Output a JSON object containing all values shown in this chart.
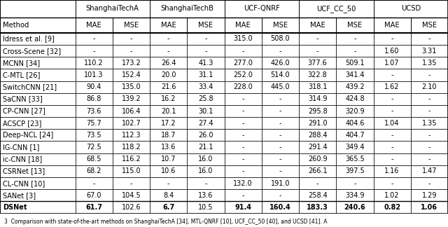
{
  "col_groups": [
    "ShanghaiTechA",
    "ShanghaiTechB",
    "UCF-QNRF",
    "UCF_CC_50",
    "UCSD"
  ],
  "methods": [
    "Idress et al. [9]",
    "Cross-Scene [32]",
    "MCNN [34]",
    "C-MTL [26]",
    "SwitchCNN [21]",
    "SaCNN [33]",
    "CP-CNN [27]",
    "ACSCP [23]",
    "Deep-NCL [24]",
    "IG-CNN [1]",
    "ic-CNN [18]",
    "CSRNet [13]",
    "CL-CNN [10]",
    "SANet [3]",
    "DSNet"
  ],
  "data": [
    [
      "-",
      "-",
      "-",
      "-",
      "315.0",
      "508.0",
      "-",
      "-",
      "-",
      "-"
    ],
    [
      "-",
      "-",
      "-",
      "-",
      "-",
      "-",
      "-",
      "-",
      "1.60",
      "3.31"
    ],
    [
      "110.2",
      "173.2",
      "26.4",
      "41.3",
      "277.0",
      "426.0",
      "377.6",
      "509.1",
      "1.07",
      "1.35"
    ],
    [
      "101.3",
      "152.4",
      "20.0",
      "31.1",
      "252.0",
      "514.0",
      "322.8",
      "341.4",
      "-",
      "-"
    ],
    [
      "90.4",
      "135.0",
      "21.6",
      "33.4",
      "228.0",
      "445.0",
      "318.1",
      "439.2",
      "1.62",
      "2.10"
    ],
    [
      "86.8",
      "139.2",
      "16.2",
      "25.8",
      "-",
      "-",
      "314.9",
      "424.8",
      "-",
      "-"
    ],
    [
      "73.6",
      "106.4",
      "20.1",
      "30.1",
      "-",
      "-",
      "295.8",
      "320.9",
      "-",
      "-"
    ],
    [
      "75.7",
      "102.7",
      "17.2",
      "27.4",
      "-",
      "-",
      "291.0",
      "404.6",
      "1.04",
      "1.35"
    ],
    [
      "73.5",
      "112.3",
      "18.7",
      "26.0",
      "-",
      "-",
      "288.4",
      "404.7",
      "-",
      "-"
    ],
    [
      "72.5",
      "118.2",
      "13.6",
      "21.1",
      "-",
      "-",
      "291.4",
      "349.4",
      "-",
      "-"
    ],
    [
      "68.5",
      "116.2",
      "10.7",
      "16.0",
      "-",
      "-",
      "260.9",
      "365.5",
      "-",
      "-"
    ],
    [
      "68.2",
      "115.0",
      "10.6",
      "16.0",
      "-",
      "-",
      "266.1",
      "397.5",
      "1.16",
      "1.47"
    ],
    [
      "-",
      "-",
      "-",
      "-",
      "132.0",
      "191.0",
      "-",
      "-",
      "-",
      "-"
    ],
    [
      "67.0",
      "104.5",
      "8.4",
      "13.6",
      "-",
      "-",
      "258.4",
      "334.9",
      "1.02",
      "1.29"
    ],
    [
      "61.7",
      "102.6",
      "6.7",
      "10.5",
      "91.4",
      "160.4",
      "183.3",
      "240.6",
      "0.82",
      "1.06"
    ]
  ],
  "dsnet_bold_cols": [
    0,
    2,
    4,
    5,
    6,
    7,
    8,
    9
  ],
  "caption": "3  Comparison with state-of-the-art methods on ShanghaiTechA [34], MTL-QNRF [10], UCF_CC_50 [40], and UCSD [41]. A",
  "font_size": 7.0,
  "header_font_size": 7.2,
  "caption_font_size": 5.5
}
